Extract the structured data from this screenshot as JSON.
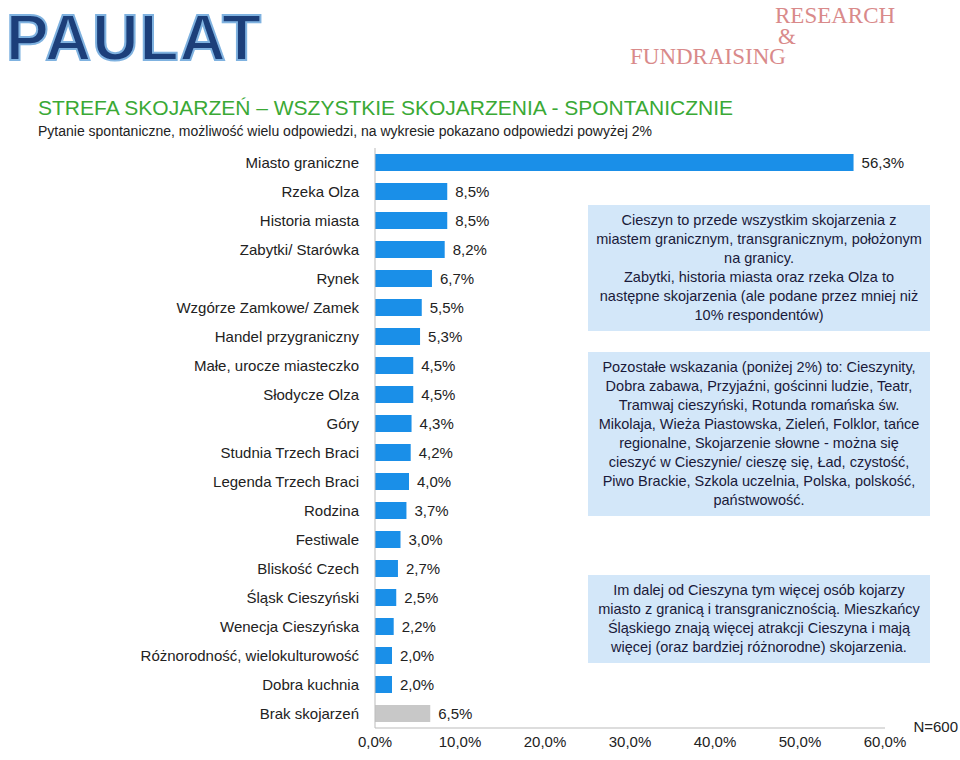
{
  "chart_data": {
    "type": "bar",
    "orientation": "horizontal",
    "logo": "PAULAT",
    "brand": [
      "RESEARCH",
      "&",
      "FUNDRAISING"
    ],
    "title": "STREFA SKOJARZEŃ – WSZYSTKIE SKOJARZENIA - SPONTANICZNIE",
    "subtitle": "Pytanie spontaniczne, możliwość wielu odpowiedzi, na wykresie pokazano odpowiedzi powyżej 2%",
    "categories": [
      "Miasto graniczne",
      "Rzeka Olza",
      "Historia miasta",
      "Zabytki/ Starówka",
      "Rynek",
      "Wzgórze Zamkowe/ Zamek",
      "Handel przygraniczny",
      "Małe, urocze miasteczko",
      "Słodycze Olza",
      "Góry",
      "Studnia Trzech Braci",
      "Legenda Trzech Braci",
      "Rodzina",
      "Festiwale",
      "Bliskość Czech",
      "Śląsk Cieszyński",
      "Wenecja Cieszyńska",
      "Różnorodność, wielokulturowość",
      "Dobra kuchnia",
      "Brak skojarzeń"
    ],
    "values": [
      56.3,
      8.5,
      8.5,
      8.2,
      6.7,
      5.5,
      5.3,
      4.5,
      4.5,
      4.3,
      4.2,
      4.0,
      3.7,
      3.0,
      2.7,
      2.5,
      2.2,
      2.0,
      2.0,
      6.5
    ],
    "value_labels": [
      "56,3%",
      "8,5%",
      "8,5%",
      "8,2%",
      "6,7%",
      "5,5%",
      "5,3%",
      "4,5%",
      "4,5%",
      "4,3%",
      "4,2%",
      "4,0%",
      "3,7%",
      "3,0%",
      "2,7%",
      "2,5%",
      "2,2%",
      "2,0%",
      "2,0%",
      "6,5%"
    ],
    "colors": [
      "#1a8fe8",
      "#1a8fe8",
      "#1a8fe8",
      "#1a8fe8",
      "#1a8fe8",
      "#1a8fe8",
      "#1a8fe8",
      "#1a8fe8",
      "#1a8fe8",
      "#1a8fe8",
      "#1a8fe8",
      "#1a8fe8",
      "#1a8fe8",
      "#1a8fe8",
      "#1a8fe8",
      "#1a8fe8",
      "#1a8fe8",
      "#1a8fe8",
      "#1a8fe8",
      "#c8c8c8"
    ],
    "xlim": [
      0,
      60
    ],
    "xticks": [
      {
        "value": 0,
        "label": "0,0%"
      },
      {
        "value": 10,
        "label": "10,0%"
      },
      {
        "value": 20,
        "label": "20,0%"
      },
      {
        "value": 30,
        "label": "30,0%"
      },
      {
        "value": 40,
        "label": "40,0%"
      },
      {
        "value": 50,
        "label": "50,0%"
      },
      {
        "value": 60,
        "label": "60,0%"
      }
    ],
    "grid": false,
    "data_labels": true,
    "annotations": [
      [
        "Cieszyn to przede wszystkim skojarzenia z miastem granicznym, transgranicznym, położonym na granicy.",
        "Zabytki, historia miasta oraz rzeka Olza to następne skojarzenia (ale podane przez mniej niż 10% respondentów)"
      ],
      [
        "Pozostałe wskazania (poniżej 2%) to: Cieszynity, Dobra zabawa, Przyjaźni, gościnni ludzie, Teatr, Tramwaj cieszyński, Rotunda romańska św. Mikolaja, Wieża Piastowska, Zieleń, Folklor, tańce regionalne, Skojarzenie słowne - można się cieszyć w Cieszynie/ cieszę się, Ład, czystość, Piwo Brackie, Szkola uczelnia, Polska, polskość, państwowość."
      ],
      [
        "Im dalej od Cieszyna tym więcej osób kojarzy miasto z granicą i transgranicznością. Mieszkańcy Śląskiego znają więcej atrakcji Cieszyna i mają więcej (oraz bardziej różnorodne) skojarzenia."
      ]
    ],
    "note": "N=600"
  }
}
